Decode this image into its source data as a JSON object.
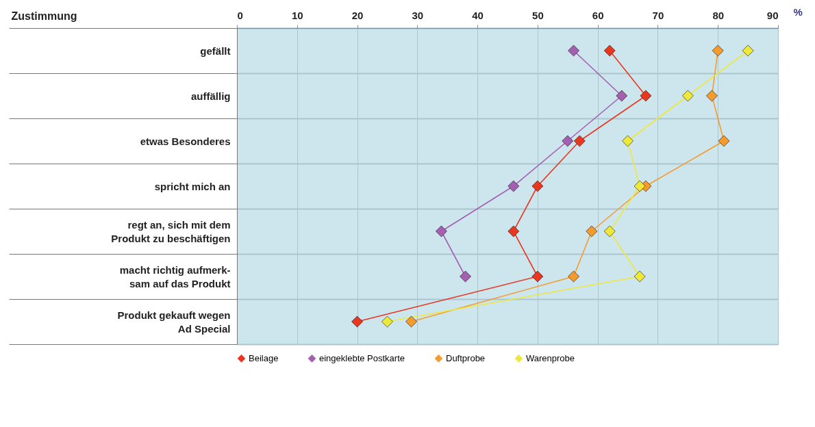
{
  "chart_data": {
    "type": "line",
    "orientation": "horizontal",
    "annotations": [
      "Zustimmung"
    ],
    "xlabel": "%",
    "categories": [
      "gefällt",
      "auffällig",
      "etwas Besonderes",
      "spricht mich an",
      "regt an, sich mit dem\nProdukt zu beschäftigen",
      "macht richtig aufmerk-\nsam auf das Produkt",
      "Produkt gekauft wegen\nAd Special"
    ],
    "series": [
      {
        "name": "Beilage",
        "color": "#e8361f",
        "values": [
          62,
          68,
          57,
          50,
          46,
          50,
          20
        ]
      },
      {
        "name": "eingeklebte Postkarte",
        "color": "#a45fb0",
        "values": [
          56,
          64,
          55,
          46,
          34,
          38,
          null
        ]
      },
      {
        "name": "Duftprobe",
        "color": "#f59a2c",
        "values": [
          80,
          79,
          81,
          68,
          59,
          56,
          29
        ]
      },
      {
        "name": "Warenprobe",
        "color": "#eee83a",
        "values": [
          85,
          75,
          65,
          67,
          62,
          67,
          25
        ]
      }
    ],
    "xlim": [
      0,
      90
    ],
    "xticks": [
      0,
      10,
      20,
      30,
      40,
      50,
      60,
      70,
      80,
      90
    ],
    "grid": true,
    "legend": "bottom",
    "marker": "diamond",
    "line_style": "solid"
  }
}
